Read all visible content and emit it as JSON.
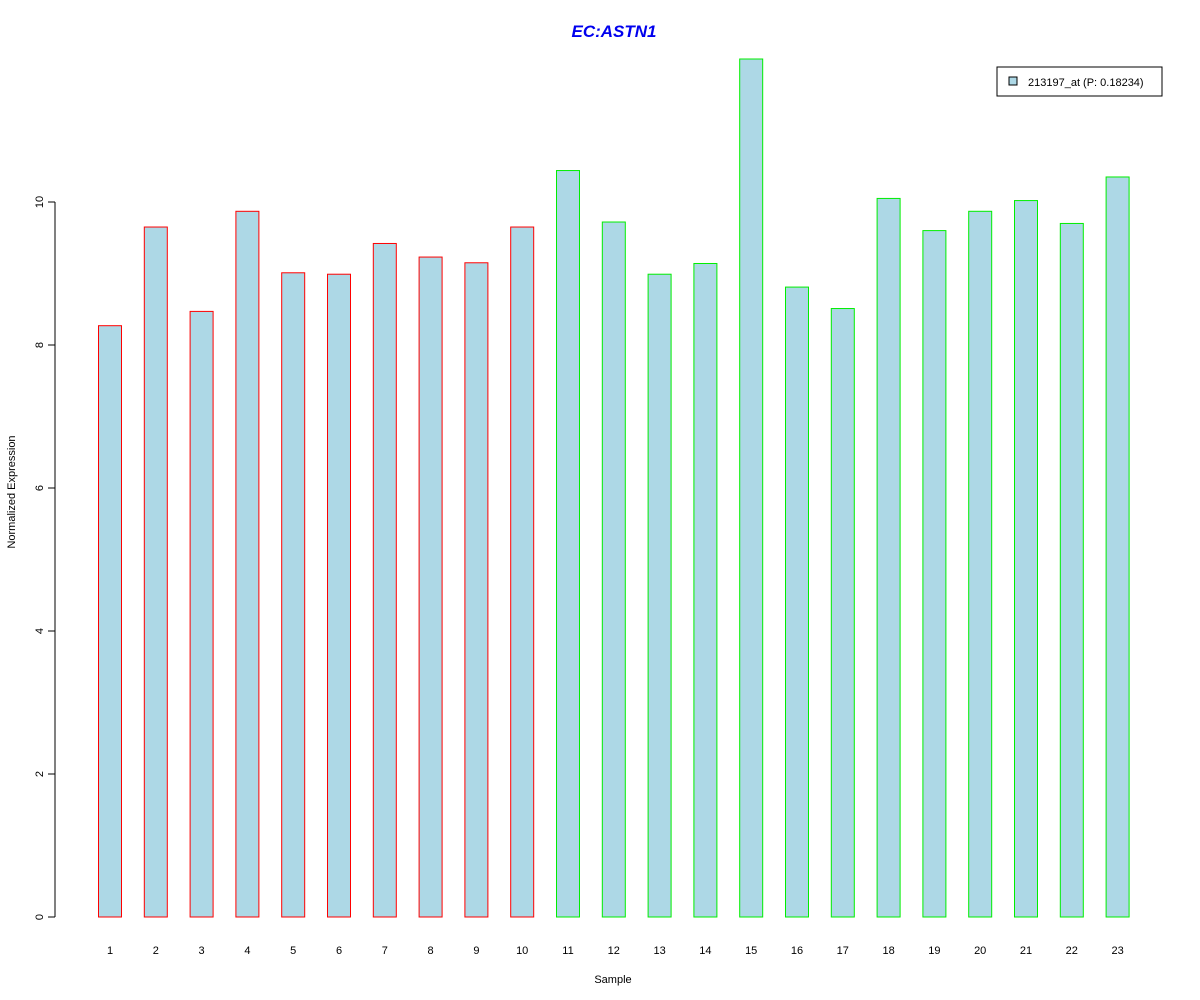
{
  "chart_data": {
    "type": "bar",
    "title": "EC:ASTN1",
    "xlabel": "Sample",
    "ylabel": "Normalized Expression",
    "ylim": [
      0,
      12
    ],
    "y_ticks": [
      "0",
      "2",
      "4",
      "6",
      "8",
      "10"
    ],
    "categories": [
      "1",
      "2",
      "3",
      "4",
      "5",
      "6",
      "7",
      "8",
      "9",
      "10",
      "11",
      "12",
      "13",
      "14",
      "15",
      "16",
      "17",
      "18",
      "19",
      "20",
      "21",
      "22",
      "23"
    ],
    "series": [
      {
        "name": "213197_at (P: 0.18234)",
        "values": [
          8.27,
          9.65,
          8.47,
          9.87,
          9.01,
          8.99,
          9.42,
          9.23,
          9.15,
          9.65,
          10.44,
          9.72,
          8.99,
          9.14,
          12.0,
          8.81,
          8.51,
          10.05,
          9.6,
          9.87,
          10.02,
          9.7,
          10.35
        ]
      }
    ],
    "groups": [
      {
        "samples": [
          "1",
          "2",
          "3",
          "4",
          "5",
          "6",
          "7",
          "8",
          "9",
          "10"
        ],
        "border_color": "#ff0000"
      },
      {
        "samples": [
          "11",
          "12",
          "13",
          "14",
          "15",
          "16",
          "17",
          "18",
          "19",
          "20",
          "21",
          "22",
          "23"
        ],
        "border_color": "#00ee00"
      }
    ],
    "colors": {
      "bar_fill": "#add8e6",
      "title": "#0000ee"
    },
    "legend": {
      "placement": "top-right",
      "entries": [
        "213197_at (P: 0.18234)"
      ]
    },
    "grid": false
  }
}
